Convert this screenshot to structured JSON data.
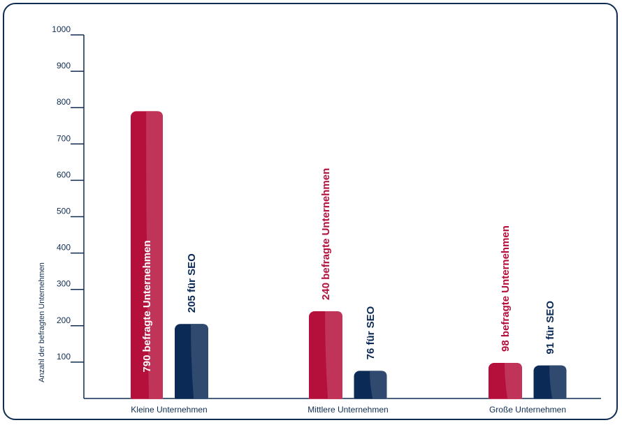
{
  "chart_data": {
    "type": "bar",
    "ylabel": "Anzahl der befragten Unternehmen",
    "ylim": [
      0,
      1000
    ],
    "yticks": [
      100,
      200,
      300,
      400,
      500,
      600,
      700,
      800,
      900,
      1000
    ],
    "grid": false,
    "categories": [
      "Kleine Unternehmen",
      "Mittlere Unternehmen",
      "Große Unternehmen"
    ],
    "series": [
      {
        "color": "#b5103c",
        "values": [
          790,
          240,
          98
        ],
        "labels": [
          "790 befragte Unternehmen",
          "240 befragte Unternehmen",
          "98 befragte Unternehmen"
        ]
      },
      {
        "color": "#0b2a55",
        "values": [
          205,
          76,
          91
        ],
        "labels": [
          "205 für SEO",
          "76 für SEO",
          "91 für SEO"
        ]
      }
    ]
  }
}
